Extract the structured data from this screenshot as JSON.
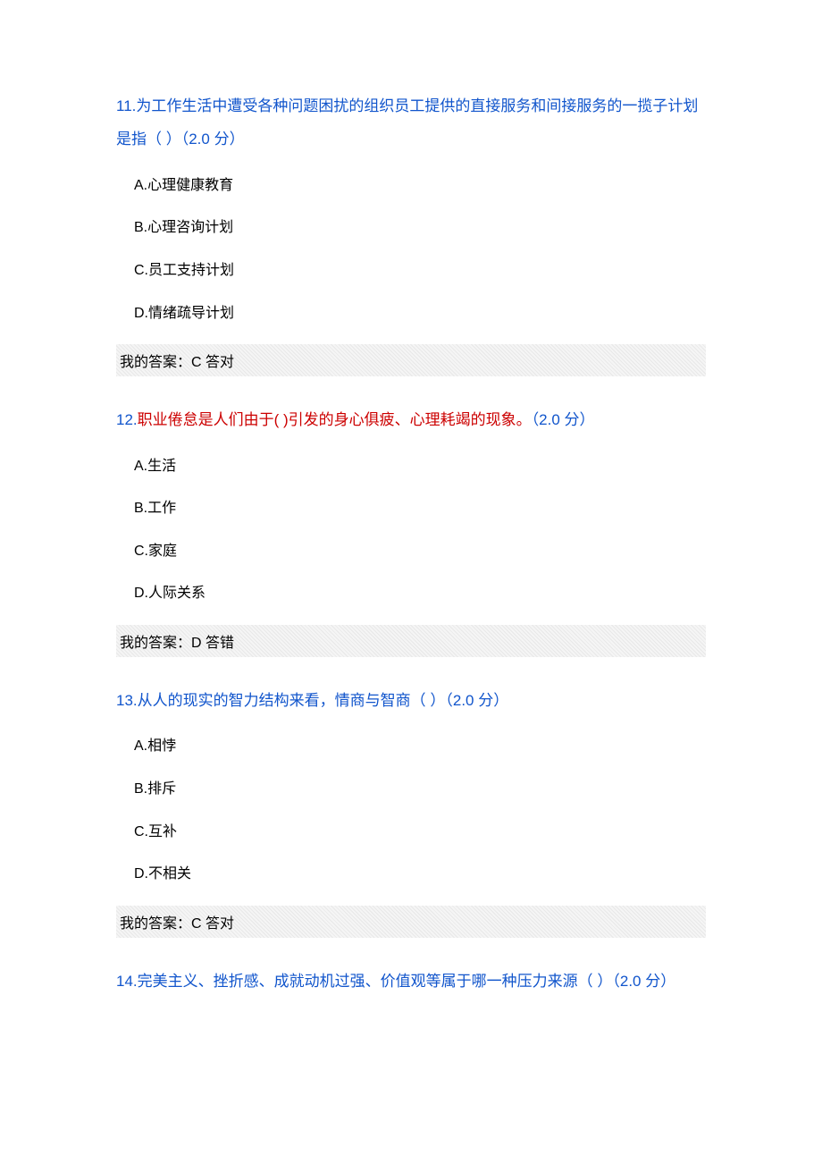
{
  "colors": {
    "question_title": "#1155cc",
    "wrong_text": "#cc0000",
    "body_text": "#000000",
    "answer_bg": "#f0f0f0",
    "page_bg": "#ffffff"
  },
  "typography": {
    "title_fontsize": 17,
    "option_fontsize": 16,
    "answer_fontsize": 16
  },
  "questions": [
    {
      "number": "11.",
      "text": "为工作生活中遭受各种问题困扰的组织员工提供的直接服务和间接服务的一揽子计划是指（  ）（2.0 分）",
      "wrong": false,
      "options": [
        "A.心理健康教育",
        "B.心理咨询计划",
        "C.员工支持计划",
        "D.情绪疏导计划"
      ],
      "answer": "我的答案：C 答对"
    },
    {
      "number": "12.",
      "text_wrong": "职业倦怠是人们由于( )引发的身心俱疲、心理耗竭的现象。",
      "points": "（2.0 分）",
      "wrong": true,
      "options": [
        "A.生活",
        "B.工作",
        "C.家庭",
        "D.人际关系"
      ],
      "answer": "我的答案：D 答错"
    },
    {
      "number": "13.",
      "text": "从人的现实的智力结构来看，情商与智商（ ）（2.0 分）",
      "wrong": false,
      "options": [
        "A.相悖",
        "B.排斥",
        "C.互补",
        "D.不相关"
      ],
      "answer": "我的答案：C 答对"
    },
    {
      "number": "14.",
      "text": "完美主义、挫折感、成就动机过强、价值观等属于哪一种压力来源（  ）（2.0 分）",
      "wrong": false,
      "options": [],
      "answer": null
    }
  ]
}
